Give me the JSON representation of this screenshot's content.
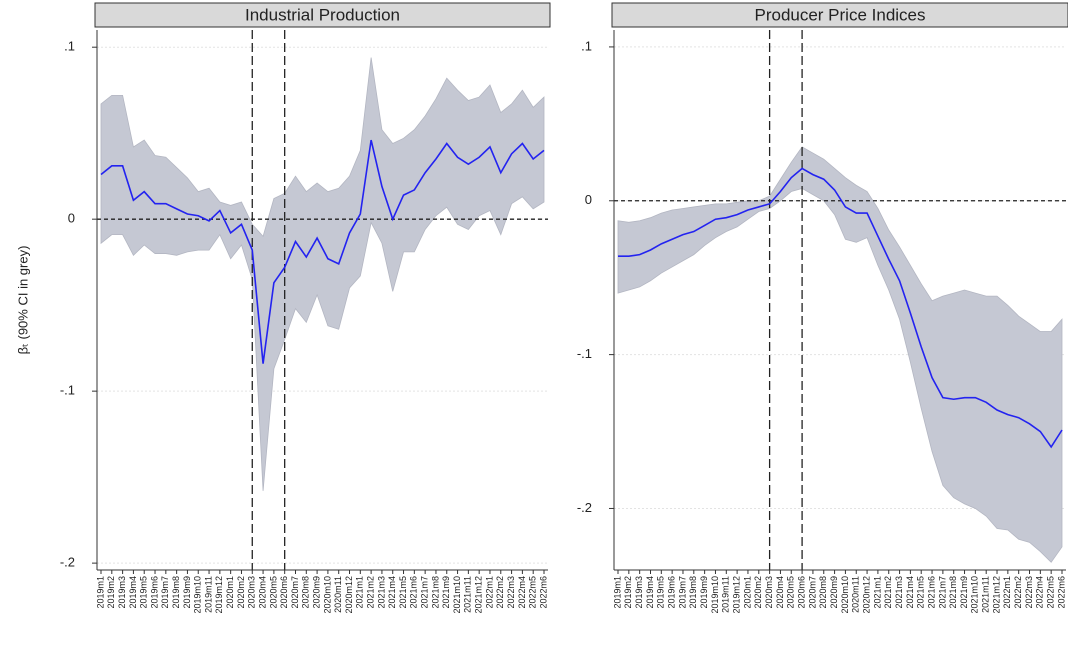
{
  "chart_data": [
    {
      "type": "line-band",
      "title": "Industrial Production",
      "ylabel": "βₜ (90% CI in grey)",
      "categories": [
        "2019m1",
        "2019m2",
        "2019m3",
        "2019m4",
        "2019m5",
        "2019m6",
        "2019m7",
        "2019m8",
        "2019m9",
        "2019m10",
        "2019m11",
        "2019m12",
        "2020m1",
        "2020m2",
        "2020m3",
        "2020m4",
        "2020m5",
        "2020m6",
        "2020m7",
        "2020m8",
        "2020m9",
        "2020m10",
        "2020m11",
        "2020m12",
        "2021m1",
        "2021m2",
        "2021m3",
        "2021m4",
        "2021m5",
        "2021m6",
        "2021m7",
        "2021m8",
        "2021m9",
        "2021m10",
        "2021m11",
        "2021m12",
        "2022m1",
        "2022m2",
        "2022m3",
        "2022m4",
        "2022m5",
        "2022m6"
      ],
      "values": [
        0.026,
        0.031,
        0.031,
        0.011,
        0.016,
        0.009,
        0.009,
        0.006,
        0.003,
        0.002,
        -0.001,
        0.005,
        -0.008,
        -0.003,
        -0.018,
        -0.084,
        -0.037,
        -0.028,
        -0.013,
        -0.022,
        -0.011,
        -0.023,
        -0.026,
        -0.008,
        0.003,
        0.046,
        0.019,
        0.0,
        0.014,
        0.017,
        0.027,
        0.035,
        0.044,
        0.036,
        0.032,
        0.036,
        0.042,
        0.027,
        0.038,
        0.044,
        0.035,
        0.04
      ],
      "ci_upper": [
        0.067,
        0.072,
        0.072,
        0.042,
        0.046,
        0.037,
        0.036,
        0.03,
        0.024,
        0.016,
        0.018,
        0.01,
        0.008,
        0.01,
        -0.003,
        -0.01,
        0.012,
        0.015,
        0.025,
        0.016,
        0.021,
        0.016,
        0.018,
        0.025,
        0.04,
        0.094,
        0.052,
        0.044,
        0.047,
        0.052,
        0.06,
        0.07,
        0.082,
        0.075,
        0.069,
        0.071,
        0.078,
        0.062,
        0.067,
        0.075,
        0.065,
        0.071
      ],
      "ci_lower": [
        -0.014,
        -0.009,
        -0.009,
        -0.021,
        -0.015,
        -0.02,
        -0.02,
        -0.021,
        -0.019,
        -0.018,
        -0.018,
        -0.009,
        -0.023,
        -0.015,
        -0.035,
        -0.158,
        -0.087,
        -0.07,
        -0.052,
        -0.06,
        -0.044,
        -0.062,
        -0.064,
        -0.04,
        -0.033,
        -0.002,
        -0.014,
        -0.042,
        -0.019,
        -0.019,
        -0.006,
        0.002,
        0.007,
        -0.003,
        -0.006,
        0.002,
        0.005,
        -0.009,
        0.009,
        0.013,
        0.006,
        0.01
      ],
      "color": "#2323f0",
      "band_color": "#c5c8d3",
      "ylim": [
        -0.204,
        0.11
      ],
      "yticks": [
        {
          "value": -0.2,
          "label": "-.2"
        },
        {
          "value": -0.1,
          "label": "-.1"
        },
        0,
        {
          "value": 0.1,
          "label": ".1"
        }
      ],
      "grid": true,
      "refline": 0,
      "vlines": [
        "2020m3",
        "2020m6"
      ]
    },
    {
      "type": "line-band",
      "title": "Producer Price Indices",
      "categories": [
        "2019m1",
        "2019m2",
        "2019m3",
        "2019m4",
        "2019m5",
        "2019m6",
        "2019m7",
        "2019m8",
        "2019m9",
        "2019m10",
        "2019m11",
        "2019m12",
        "2020m1",
        "2020m2",
        "2020m3",
        "2020m4",
        "2020m5",
        "2020m6",
        "2020m7",
        "2020m8",
        "2020m9",
        "2020m10",
        "2020m11",
        "2020m12",
        "2021m1",
        "2021m2",
        "2021m3",
        "2021m4",
        "2021m5",
        "2021m6",
        "2021m7",
        "2021m8",
        "2021m9",
        "2021m10",
        "2021m11",
        "2021m12",
        "2022m1",
        "2022m2",
        "2022m3",
        "2022m4",
        "2022m5",
        "2022m6"
      ],
      "values": [
        -0.036,
        -0.036,
        -0.035,
        -0.032,
        -0.028,
        -0.025,
        -0.022,
        -0.02,
        -0.016,
        -0.012,
        -0.011,
        -0.009,
        -0.006,
        -0.004,
        -0.002,
        0.006,
        0.015,
        0.021,
        0.017,
        0.014,
        0.007,
        -0.004,
        -0.008,
        -0.008,
        -0.023,
        -0.038,
        -0.052,
        -0.073,
        -0.095,
        -0.115,
        -0.128,
        -0.129,
        -0.128,
        -0.128,
        -0.131,
        -0.136,
        -0.139,
        -0.141,
        -0.145,
        -0.15,
        -0.16,
        -0.149
      ],
      "ci_upper": [
        -0.013,
        -0.014,
        -0.013,
        -0.011,
        -0.008,
        -0.006,
        -0.005,
        -0.004,
        -0.003,
        -0.002,
        -0.002,
        -0.001,
        0.0,
        0.0,
        0.003,
        0.014,
        0.025,
        0.035,
        0.031,
        0.027,
        0.021,
        0.015,
        0.01,
        0.006,
        -0.005,
        -0.019,
        -0.03,
        -0.042,
        -0.054,
        -0.065,
        -0.062,
        -0.06,
        -0.058,
        -0.06,
        -0.062,
        -0.062,
        -0.068,
        -0.075,
        -0.08,
        -0.085,
        -0.085,
        -0.077
      ],
      "ci_lower": [
        -0.06,
        -0.058,
        -0.056,
        -0.052,
        -0.047,
        -0.043,
        -0.039,
        -0.035,
        -0.029,
        -0.024,
        -0.02,
        -0.017,
        -0.012,
        -0.007,
        -0.005,
        0.0,
        0.006,
        0.008,
        0.004,
        0.0,
        -0.009,
        -0.025,
        -0.027,
        -0.024,
        -0.042,
        -0.058,
        -0.077,
        -0.105,
        -0.135,
        -0.163,
        -0.185,
        -0.193,
        -0.197,
        -0.2,
        -0.205,
        -0.213,
        -0.214,
        -0.22,
        -0.222,
        -0.228,
        -0.235,
        -0.225
      ],
      "color": "#2323f0",
      "band_color": "#c5c8d3",
      "ylim": [
        -0.24,
        0.111
      ],
      "yticks": [
        {
          "value": -0.2,
          "label": "-.2"
        },
        {
          "value": -0.1,
          "label": "-.1"
        },
        0,
        {
          "value": 0.1,
          "label": ".1"
        }
      ],
      "grid": true,
      "refline": 0,
      "vlines": [
        "2020m3",
        "2020m6"
      ]
    }
  ]
}
